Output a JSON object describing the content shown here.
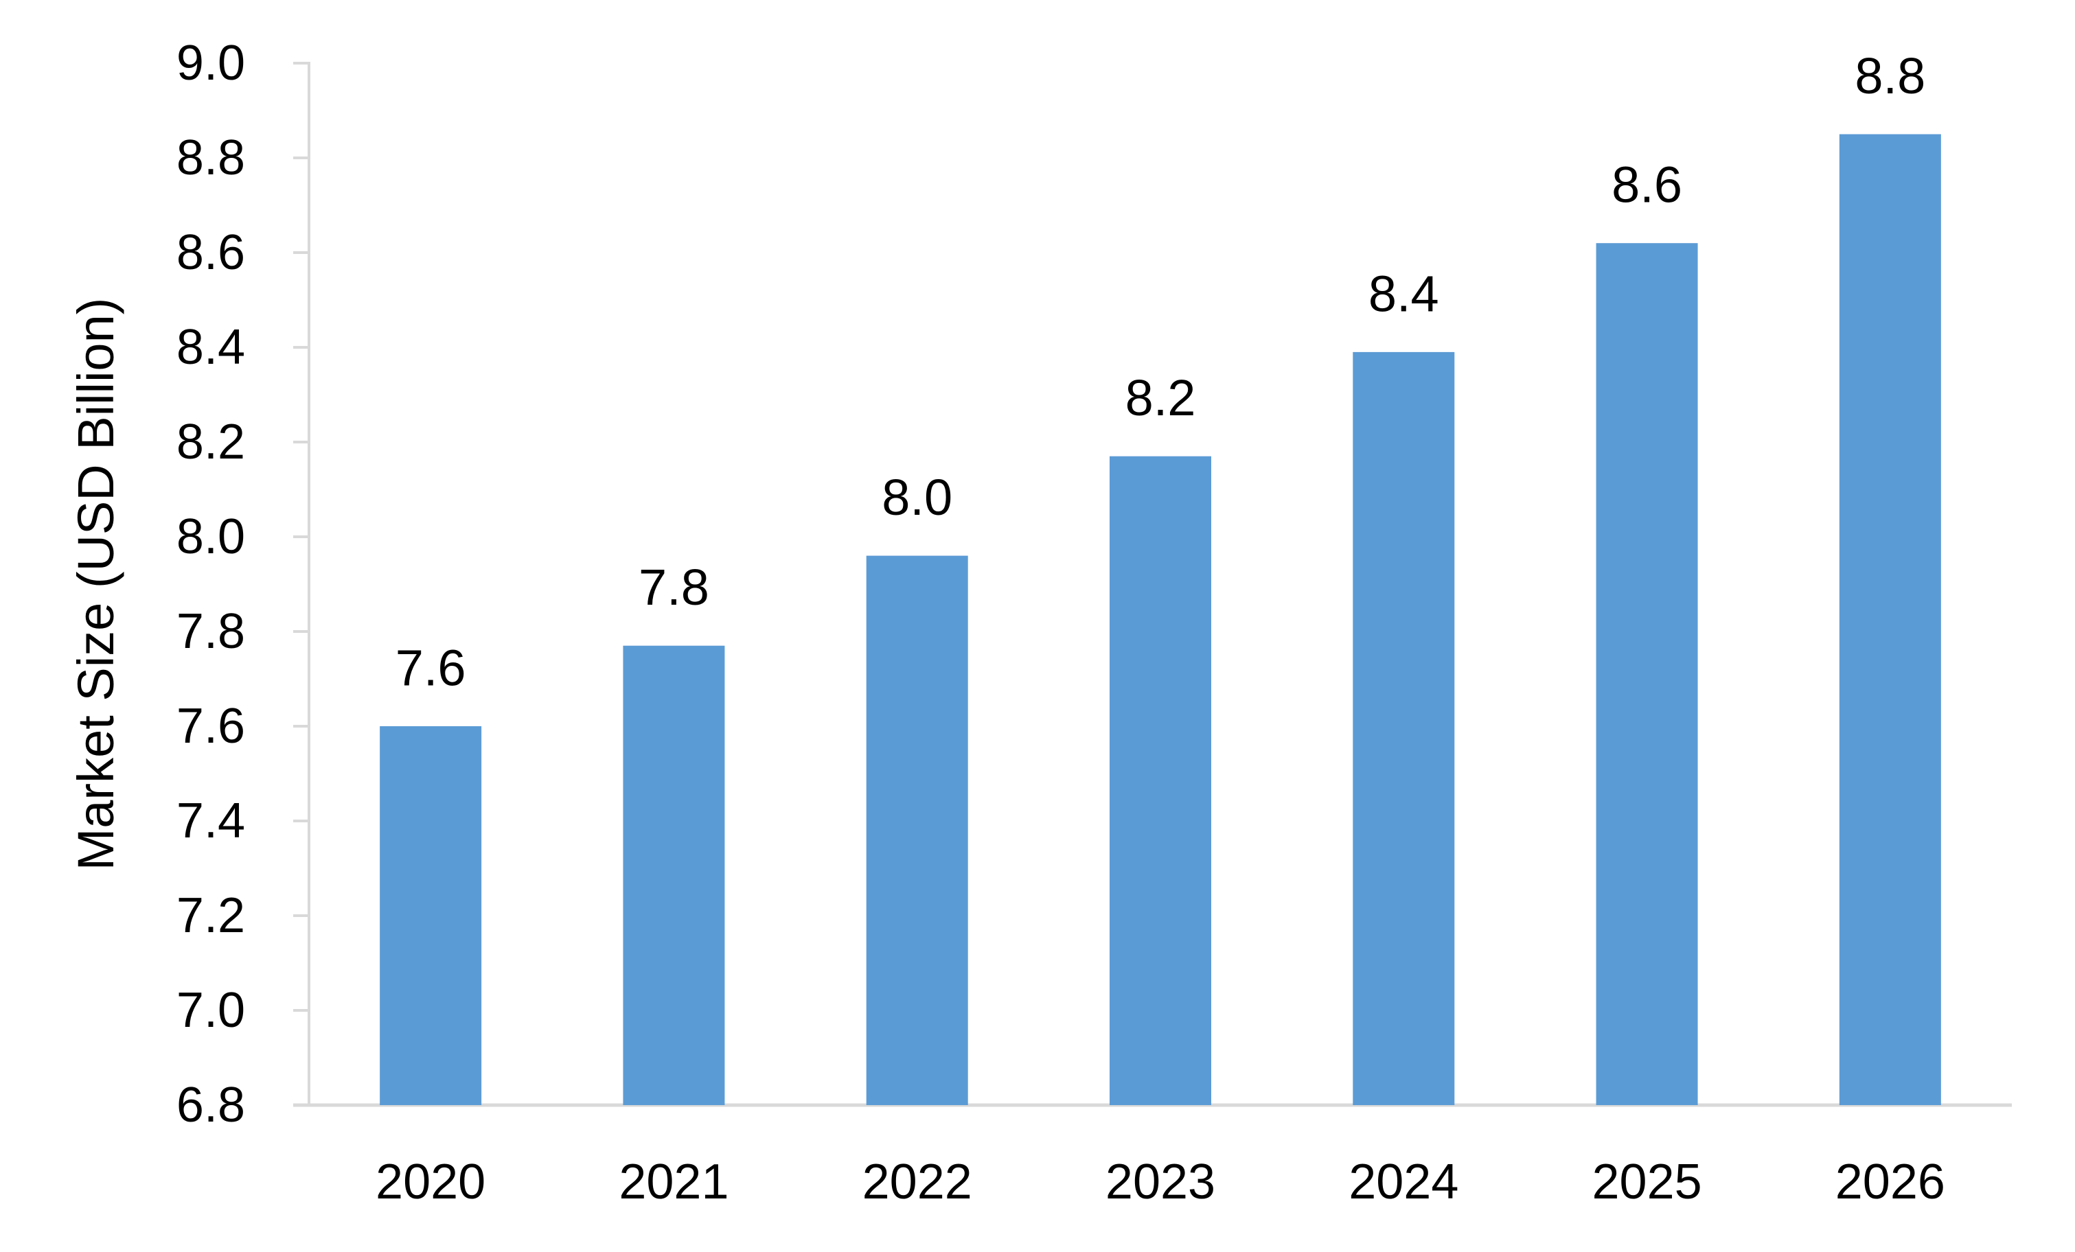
{
  "chart_data": {
    "type": "bar",
    "title": "",
    "ylabel": "Market Size (USD Billion)",
    "xlabel": "",
    "categories": [
      "2020",
      "2021",
      "2022",
      "2023",
      "2024",
      "2025",
      "2026"
    ],
    "values": [
      7.6,
      7.77,
      7.96,
      8.17,
      8.39,
      8.62,
      8.85
    ],
    "data_labels": [
      "7.6",
      "7.8",
      "8.0",
      "8.2",
      "8.4",
      "8.6",
      "8.8"
    ],
    "ylim": [
      6.8,
      9.0
    ],
    "ytick_step": 0.2,
    "ytick_labels": [
      "9.0",
      "8.8",
      "8.6",
      "8.4",
      "8.2",
      "8.0",
      "7.8",
      "7.6",
      "7.4",
      "7.2",
      "7.0",
      "6.8"
    ],
    "grid": "off",
    "legend": "none",
    "bar_color": "#5B9BD5",
    "axis_color": "#D9D9D9",
    "text_color": "#000000"
  }
}
